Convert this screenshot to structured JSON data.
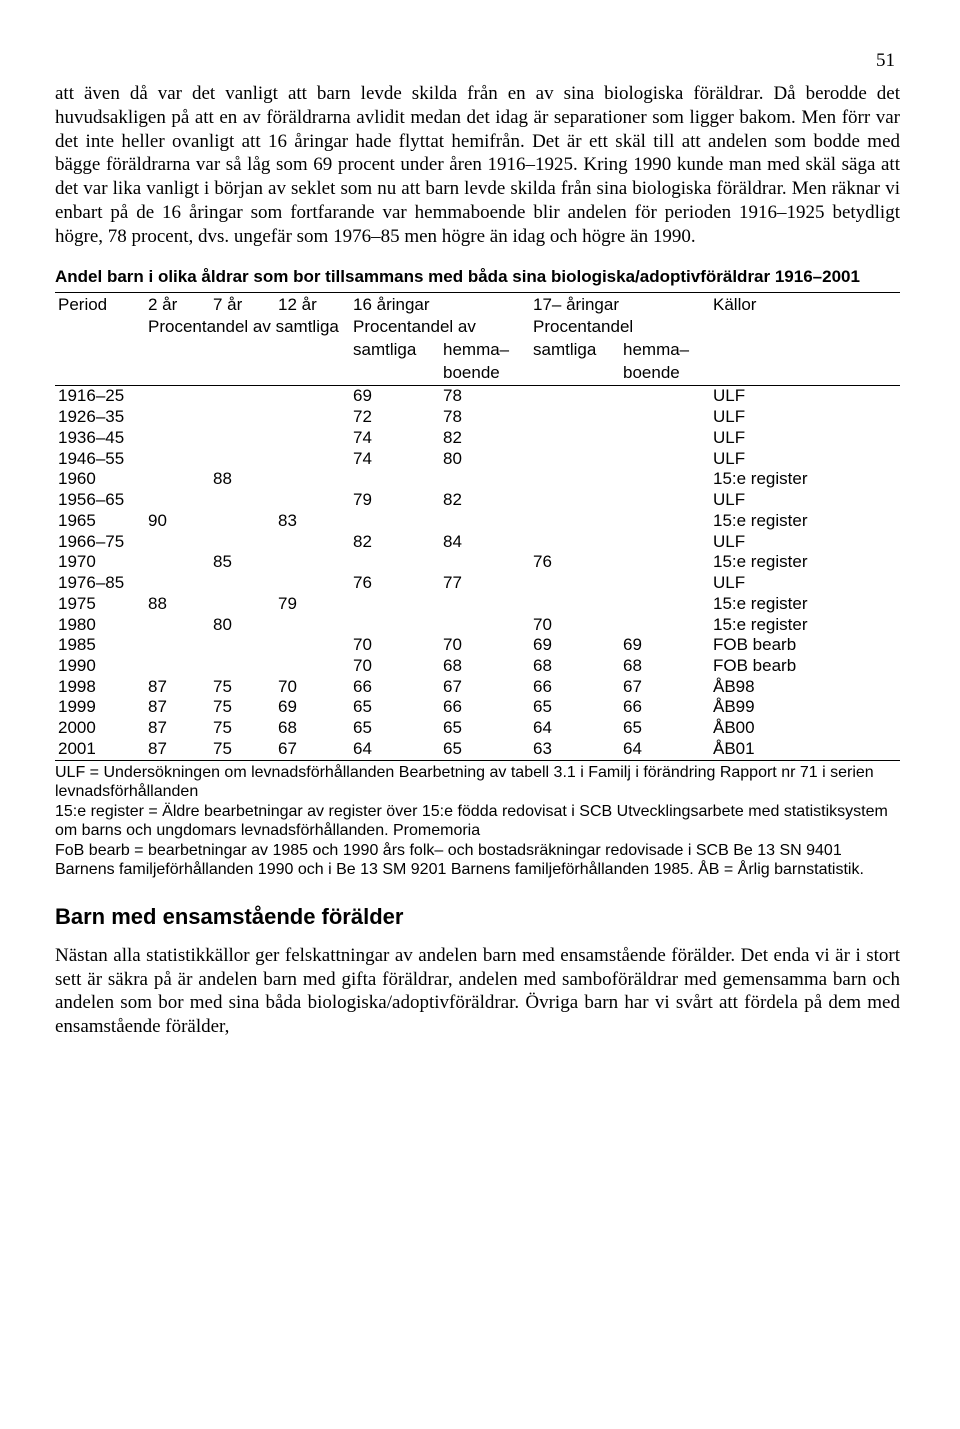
{
  "page_number": "51",
  "para1": "att även då var det vanligt att barn levde skilda från en av sina biologiska föräldrar. Då berodde det huvudsakligen på att en av föräldrarna avlidit medan det idag är separationer som ligger bakom. Men förr var det inte heller ovanligt att 16 åringar hade flyttat hemifrån. Det är ett skäl till att andelen som bodde med bägge föräldrarna var så låg som 69 procent under åren 1916–1925. Kring 1990 kunde man med skäl säga att det var lika vanligt i början av seklet som nu att barn levde skilda från sina biologiska föräldrar. Men räknar vi enbart på de 16 åringar som fortfarande var hemmaboende blir andelen för perioden 1916–1925 betydligt högre, 78 procent, dvs. ungefär som 1976–85 men högre än idag och högre än 1990.",
  "table_title": "Andel barn i olika åldrar som bor tillsammans med båda sina biologiska/adoptivföräldrar 1916–2001",
  "columns": {
    "period": "Period",
    "c2ar": "2 år",
    "c7ar": "7 år",
    "c12ar": "12 år",
    "c16": "16 åringar",
    "c17": "17– åringar",
    "kallor": "Källor",
    "procentandel_samtliga": "Procentandel av samtliga",
    "procentandel_av": "Procentandel av",
    "procentandel": "Procentandel",
    "samtliga": "samtliga",
    "hemma": "hemma–",
    "boende": "boende"
  },
  "rows": [
    {
      "period": "1916–25",
      "c2": "",
      "c7": "",
      "c12": "",
      "s16": "69",
      "h16": "78",
      "s17": "",
      "h17": "",
      "src": "ULF"
    },
    {
      "period": "1926–35",
      "c2": "",
      "c7": "",
      "c12": "",
      "s16": "72",
      "h16": "78",
      "s17": "",
      "h17": "",
      "src": "ULF"
    },
    {
      "period": "1936–45",
      "c2": "",
      "c7": "",
      "c12": "",
      "s16": "74",
      "h16": "82",
      "s17": "",
      "h17": "",
      "src": "ULF"
    },
    {
      "period": "1946–55",
      "c2": "",
      "c7": "",
      "c12": "",
      "s16": "74",
      "h16": "80",
      "s17": "",
      "h17": "",
      "src": "ULF"
    },
    {
      "period": "1960",
      "c2": "",
      "c7": "88",
      "c12": "",
      "s16": "",
      "h16": "",
      "s17": "",
      "h17": "",
      "src": "15:e register"
    },
    {
      "period": "1956–65",
      "c2": "",
      "c7": "",
      "c12": "",
      "s16": "79",
      "h16": "82",
      "s17": "",
      "h17": "",
      "src": "ULF"
    },
    {
      "period": "1965",
      "c2": "90",
      "c7": "",
      "c12": "83",
      "s16": "",
      "h16": "",
      "s17": "",
      "h17": "",
      "src": "15:e register"
    },
    {
      "period": "1966–75",
      "c2": "",
      "c7": "",
      "c12": "",
      "s16": "82",
      "h16": "84",
      "s17": "",
      "h17": "",
      "src": "ULF"
    },
    {
      "period": "1970",
      "c2": "",
      "c7": "85",
      "c12": "",
      "s16": "",
      "h16": "",
      "s17": "76",
      "h17": "",
      "src": "15:e register"
    },
    {
      "period": "1976–85",
      "c2": "",
      "c7": "",
      "c12": "",
      "s16": "76",
      "h16": "77",
      "s17": "",
      "h17": "",
      "src": "ULF"
    },
    {
      "period": "1975",
      "c2": "88",
      "c7": "",
      "c12": "79",
      "s16": "",
      "h16": "",
      "s17": "",
      "h17": "",
      "src": "15:e register"
    },
    {
      "period": "1980",
      "c2": "",
      "c7": "80",
      "c12": "",
      "s16": "",
      "h16": "",
      "s17": "70",
      "h17": "",
      "src": "15:e register"
    },
    {
      "period": "1985",
      "c2": "",
      "c7": "",
      "c12": "",
      "s16": "70",
      "h16": "70",
      "s17": "69",
      "h17": "69",
      "src": "FOB bearb"
    },
    {
      "period": "1990",
      "c2": "",
      "c7": "",
      "c12": "",
      "s16": "70",
      "h16": "68",
      "s17": "68",
      "h17": "68",
      "src": "FOB bearb"
    },
    {
      "period": "1998",
      "c2": "87",
      "c7": "75",
      "c12": "70",
      "s16": "66",
      "h16": "67",
      "s17": "66",
      "h17": "67",
      "src": "ÅB98"
    },
    {
      "period": "1999",
      "c2": "87",
      "c7": "75",
      "c12": "69",
      "s16": "65",
      "h16": "66",
      "s17": "65",
      "h17": "66",
      "src": "ÅB99"
    },
    {
      "period": "2000",
      "c2": "87",
      "c7": "75",
      "c12": "68",
      "s16": "65",
      "h16": "65",
      "s17": "64",
      "h17": "65",
      "src": "ÅB00"
    },
    {
      "period": "2001",
      "c2": "87",
      "c7": "75",
      "c12": "67",
      "s16": "64",
      "h16": "65",
      "s17": "63",
      "h17": "64",
      "src": "ÅB01"
    }
  ],
  "footnote": "ULF = Undersökningen om levnadsförhållanden  Bearbetning av tabell 3.1 i Familj i förändring Rapport nr 71 i serien levnadsförhållanden\n15:e register = Äldre bearbetningar av register över 15:e födda redovisat i SCB Utvecklingsarbete med statistiksystem om barns och ungdomars levnadsförhållanden. Promemoria\nFoB bearb = bearbetningar av 1985 och 1990 års folk– och bostadsräkningar redovisade i SCB Be 13 SN 9401 Barnens familjeförhållanden 1990 och i  Be 13 SM 9201 Barnens familjeförhållanden 1985.  ÅB = Årlig barnstatistik.",
  "h2": "Barn med ensamstående förälder",
  "para2": "Nästan alla statistikkällor ger felskattningar av andelen barn med ensamstående förälder. Det enda vi är i stort sett är säkra på är andelen barn med gifta föräldrar, andelen med samboföräldrar med gemensamma barn  och andelen som bor med sina båda biologiska/adoptivföräldrar. Övriga barn har vi svårt att fördela på dem med ensamstående förälder,"
}
